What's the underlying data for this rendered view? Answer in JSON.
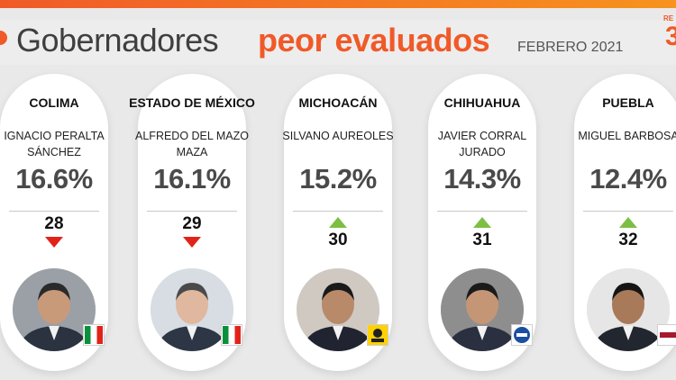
{
  "header": {
    "title_main": "Gobernadores",
    "title_accent": "peor evaluados",
    "date": "FEBRERO 2021",
    "brand_small": "RE",
    "brand_num": "3"
  },
  "colors": {
    "accent": "#f05a28",
    "trend_up": "#7cbf43",
    "trend_down": "#e2231a"
  },
  "governors": [
    {
      "state": "COLIMA",
      "name": "IGNACIO PERALTA SÁNCHEZ",
      "percent": "16.6%",
      "rank": "28",
      "trend": "down",
      "party": "PRI",
      "party_icon": "pri-logo-icon"
    },
    {
      "state": "ESTADO DE MÉXICO",
      "name": "ALFREDO DEL MAZO MAZA",
      "percent": "16.1%",
      "rank": "29",
      "trend": "down",
      "party": "PRI",
      "party_icon": "pri-logo-icon"
    },
    {
      "state": "MICHOACÁN",
      "name": "SILVANO AUREOLES",
      "percent": "15.2%",
      "rank": "30",
      "trend": "up",
      "party": "PRD",
      "party_icon": "prd-logo-icon"
    },
    {
      "state": "CHIHUAHUA",
      "name": "JAVIER CORRAL JURADO",
      "percent": "14.3%",
      "rank": "31",
      "trend": "up",
      "party": "PAN",
      "party_icon": "pan-logo-icon"
    },
    {
      "state": "PUEBLA",
      "name": "MIGUEL BARBOSA",
      "percent": "12.4%",
      "rank": "32",
      "trend": "up",
      "party": "MORENA",
      "party_icon": "morena-logo-icon"
    }
  ]
}
